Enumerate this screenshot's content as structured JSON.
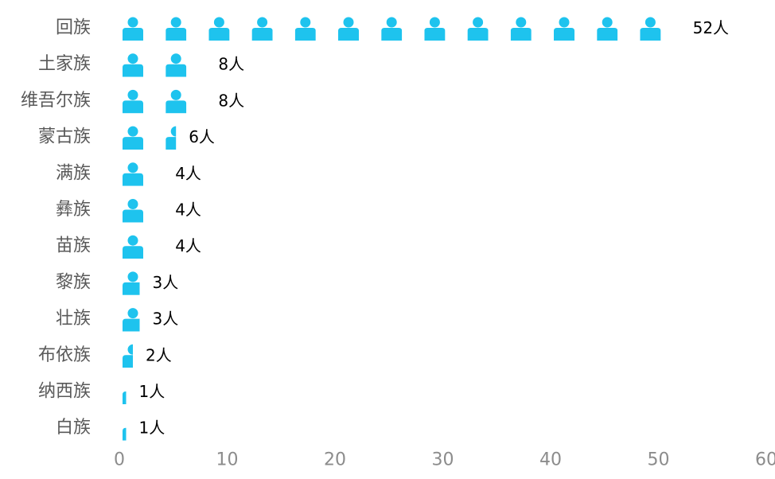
{
  "chart_data": {
    "type": "bar",
    "orientation": "horizontal",
    "pictograph": true,
    "icon": "person-icon",
    "units_per_icon": 4,
    "categories": [
      "回族",
      "土家族",
      "维吾尔族",
      "蒙古族",
      "满族",
      "彝族",
      "苗族",
      "黎族",
      "壮族",
      "布依族",
      "纳西族",
      "白族"
    ],
    "values": [
      52,
      8,
      8,
      6,
      4,
      4,
      4,
      3,
      3,
      2,
      1,
      1
    ],
    "data_labels": [
      "52人",
      "8人",
      "8人",
      "6人",
      "4人",
      "4人",
      "4人",
      "3人",
      "3人",
      "2人",
      "1人",
      "1人"
    ],
    "xlim": [
      0,
      60
    ],
    "xticks": [
      "0",
      "10",
      "20",
      "30",
      "40",
      "50",
      "60"
    ],
    "grid": false,
    "legend": "none",
    "colors": {
      "icon": "#1ec3ee",
      "category_text": "#595959",
      "tick_text": "#8c8c8c",
      "label_text": "#000000"
    }
  }
}
